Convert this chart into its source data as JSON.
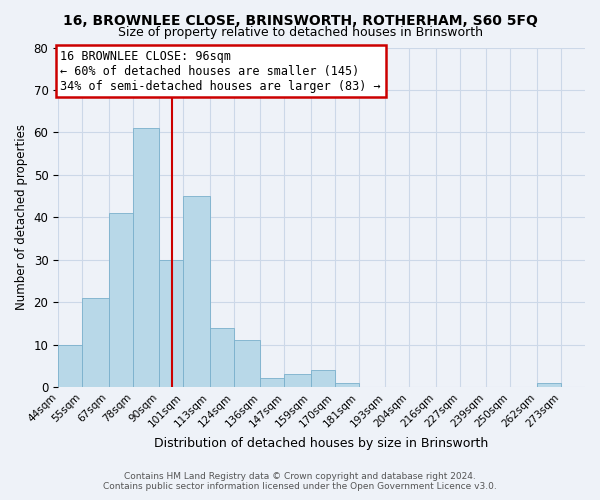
{
  "title": "16, BROWNLEE CLOSE, BRINSWORTH, ROTHERHAM, S60 5FQ",
  "subtitle": "Size of property relative to detached houses in Brinsworth",
  "xlabel": "Distribution of detached houses by size in Brinsworth",
  "ylabel": "Number of detached properties",
  "bin_labels": [
    "44sqm",
    "55sqm",
    "67sqm",
    "78sqm",
    "90sqm",
    "101sqm",
    "113sqm",
    "124sqm",
    "136sqm",
    "147sqm",
    "159sqm",
    "170sqm",
    "181sqm",
    "193sqm",
    "204sqm",
    "216sqm",
    "227sqm",
    "239sqm",
    "250sqm",
    "262sqm",
    "273sqm"
  ],
  "bin_edges": [
    44,
    55,
    67,
    78,
    90,
    101,
    113,
    124,
    136,
    147,
    159,
    170,
    181,
    193,
    204,
    216,
    227,
    239,
    250,
    262,
    273,
    284
  ],
  "bar_heights": [
    10,
    21,
    41,
    61,
    30,
    45,
    14,
    11,
    2,
    3,
    4,
    1,
    0,
    0,
    0,
    0,
    0,
    0,
    0,
    1,
    0
  ],
  "bar_color": "#b8d8e8",
  "bar_edge_color": "#7ab0cc",
  "grid_color": "#ccd8e8",
  "background_color": "#eef2f8",
  "vline_x": 96,
  "vline_color": "#cc0000",
  "ylim": [
    0,
    80
  ],
  "yticks": [
    0,
    10,
    20,
    30,
    40,
    50,
    60,
    70,
    80
  ],
  "annotation_title": "16 BROWNLEE CLOSE: 96sqm",
  "annotation_line1": "← 60% of detached houses are smaller (145)",
  "annotation_line2": "34% of semi-detached houses are larger (83) →",
  "annotation_box_color": "#ffffff",
  "annotation_box_edge": "#cc0000",
  "footer1": "Contains HM Land Registry data © Crown copyright and database right 2024.",
  "footer2": "Contains public sector information licensed under the Open Government Licence v3.0."
}
